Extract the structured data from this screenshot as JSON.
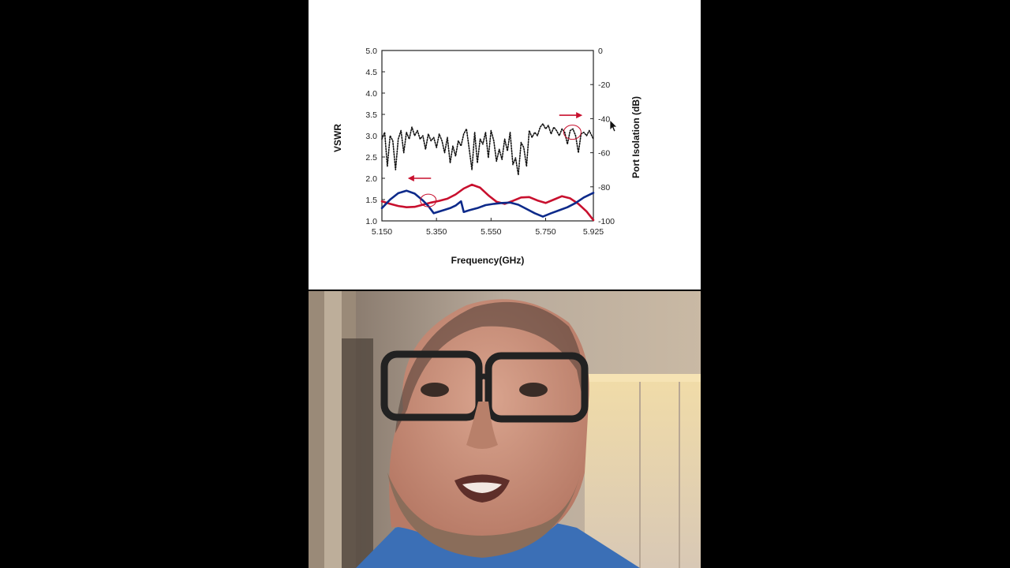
{
  "chart_data": {
    "type": "line",
    "xlabel": "Frequency(GHz)",
    "ylabel": "VSWR",
    "y2label": "Port  Isolation (dB)",
    "xlim": [
      5.15,
      5.925
    ],
    "ylim": [
      1.0,
      5.0
    ],
    "y2lim": [
      -100,
      0
    ],
    "xticks": [
      "5.150",
      "5.350",
      "5.550",
      "5.750",
      "5.925"
    ],
    "xtick_values": [
      5.15,
      5.35,
      5.55,
      5.75,
      5.925
    ],
    "yticks": [
      "1.0",
      "1.5",
      "2.0",
      "2.5",
      "3.0",
      "3.5",
      "4.0",
      "4.5",
      "5.0"
    ],
    "ytick_values": [
      1.0,
      1.5,
      2.0,
      2.5,
      3.0,
      3.5,
      4.0,
      4.5,
      5.0
    ],
    "y2ticks": [
      "0",
      "-20",
      "-40",
      "-60",
      "-80",
      "-100"
    ],
    "y2tick_values": [
      0,
      -20,
      -40,
      -60,
      -80,
      -100
    ],
    "grid": false,
    "series": [
      {
        "axis": "left",
        "color": "#c8102e",
        "style": "solid",
        "x": [
          5.15,
          5.18,
          5.21,
          5.24,
          5.27,
          5.3,
          5.33,
          5.36,
          5.39,
          5.42,
          5.45,
          5.48,
          5.51,
          5.54,
          5.57,
          5.6,
          5.63,
          5.66,
          5.69,
          5.72,
          5.75,
          5.78,
          5.81,
          5.84,
          5.87,
          5.9,
          5.925
        ],
        "values": [
          1.46,
          1.4,
          1.35,
          1.32,
          1.33,
          1.38,
          1.43,
          1.47,
          1.52,
          1.62,
          1.76,
          1.85,
          1.78,
          1.6,
          1.45,
          1.4,
          1.47,
          1.55,
          1.56,
          1.48,
          1.42,
          1.5,
          1.58,
          1.53,
          1.4,
          1.22,
          1.02
        ]
      },
      {
        "axis": "left",
        "color": "#0d2a8a",
        "style": "solid",
        "x": [
          5.15,
          5.18,
          5.21,
          5.24,
          5.27,
          5.3,
          5.32,
          5.34,
          5.36,
          5.38,
          5.4,
          5.42,
          5.44,
          5.45,
          5.47,
          5.5,
          5.53,
          5.56,
          5.59,
          5.62,
          5.65,
          5.68,
          5.71,
          5.74,
          5.77,
          5.8,
          5.83,
          5.86,
          5.89,
          5.925
        ],
        "values": [
          1.3,
          1.5,
          1.65,
          1.71,
          1.64,
          1.48,
          1.35,
          1.18,
          1.22,
          1.26,
          1.3,
          1.36,
          1.46,
          1.21,
          1.25,
          1.3,
          1.37,
          1.4,
          1.42,
          1.43,
          1.38,
          1.28,
          1.18,
          1.1,
          1.18,
          1.25,
          1.32,
          1.42,
          1.55,
          1.66
        ]
      },
      {
        "axis": "right",
        "color": "#111111",
        "style": "dotted",
        "x": [
          5.15,
          5.16,
          5.17,
          5.18,
          5.19,
          5.2,
          5.21,
          5.22,
          5.23,
          5.24,
          5.25,
          5.26,
          5.27,
          5.28,
          5.29,
          5.3,
          5.31,
          5.32,
          5.33,
          5.34,
          5.35,
          5.36,
          5.37,
          5.38,
          5.39,
          5.4,
          5.41,
          5.42,
          5.43,
          5.44,
          5.45,
          5.46,
          5.47,
          5.48,
          5.49,
          5.5,
          5.51,
          5.52,
          5.53,
          5.54,
          5.55,
          5.56,
          5.57,
          5.58,
          5.59,
          5.6,
          5.61,
          5.62,
          5.63,
          5.64,
          5.65,
          5.66,
          5.67,
          5.68,
          5.69,
          5.7,
          5.71,
          5.72,
          5.73,
          5.74,
          5.75,
          5.76,
          5.77,
          5.78,
          5.79,
          5.8,
          5.81,
          5.82,
          5.83,
          5.84,
          5.85,
          5.86,
          5.87,
          5.88,
          5.89,
          5.9,
          5.91,
          5.925
        ],
        "values": [
          -52,
          -48,
          -68,
          -50,
          -53,
          -70,
          -52,
          -47,
          -60,
          -48,
          -52,
          -45,
          -50,
          -47,
          -52,
          -50,
          -58,
          -49,
          -53,
          -51,
          -57,
          -49,
          -53,
          -60,
          -51,
          -66,
          -56,
          -62,
          -53,
          -56,
          -49,
          -46,
          -58,
          -70,
          -48,
          -66,
          -52,
          -55,
          -48,
          -63,
          -47,
          -53,
          -65,
          -58,
          -64,
          -52,
          -59,
          -48,
          -67,
          -63,
          -73,
          -54,
          -57,
          -68,
          -47,
          -51,
          -48,
          -50,
          -45,
          -43,
          -46,
          -44,
          -49,
          -45,
          -47,
          -50,
          -46,
          -48,
          -55,
          -47,
          -46,
          -50,
          -60,
          -49,
          -48,
          -50,
          -47,
          -52
        ]
      }
    ],
    "annotations": [
      {
        "type": "arrow",
        "direction": "left",
        "color": "#c8102e",
        "label_axis": "left"
      },
      {
        "type": "arrow",
        "direction": "right",
        "color": "#c8102e",
        "label_axis": "right"
      },
      {
        "type": "circle",
        "color": "#c8102e"
      },
      {
        "type": "circle",
        "color": "#c8102e"
      }
    ]
  },
  "video": {
    "icons": [
      "webcam-presenter"
    ]
  }
}
